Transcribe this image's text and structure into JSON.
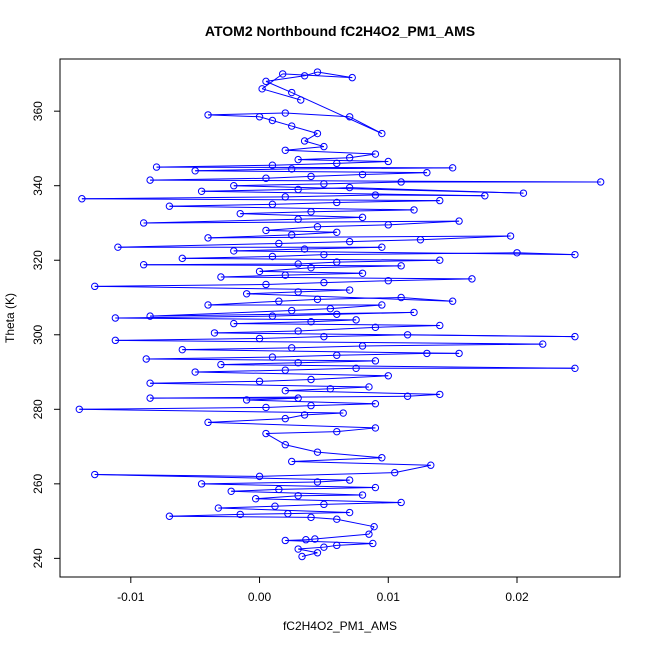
{
  "chart_data": {
    "type": "scatter",
    "title": "ATOM2 Northbound fC2H4O2_PM1_AMS",
    "xlabel": "fC2H4O2_PM1_AMS",
    "ylabel": "Theta (K)",
    "xlim": [
      -0.0155,
      0.028
    ],
    "ylim": [
      235,
      374
    ],
    "xticks": [
      -0.01,
      0.0,
      0.01,
      0.02
    ],
    "xtick_labels": [
      "-0.01",
      "0.00",
      "0.01",
      "0.02"
    ],
    "yticks": [
      240,
      260,
      280,
      300,
      320,
      340,
      360
    ],
    "ytick_labels": [
      "240",
      "260",
      "280",
      "300",
      "320",
      "340",
      "360"
    ],
    "grid": false,
    "marker": "open-circle",
    "connected": true,
    "series": [
      {
        "color": "#0000ff",
        "points": [
          [
            0.0033,
            240.5
          ],
          [
            0.0045,
            241.5
          ],
          [
            0.003,
            242.5
          ],
          [
            0.005,
            243.0
          ],
          [
            0.006,
            243.5
          ],
          [
            0.0088,
            244.0
          ],
          [
            0.002,
            244.8
          ],
          [
            0.0036,
            245.0
          ],
          [
            0.0043,
            245.2
          ],
          [
            0.0085,
            246.5
          ],
          [
            0.0089,
            248.5
          ],
          [
            0.006,
            250.5
          ],
          [
            0.004,
            251.0
          ],
          [
            -0.007,
            251.3
          ],
          [
            -0.0015,
            251.8
          ],
          [
            0.0022,
            252.0
          ],
          [
            0.007,
            252.3
          ],
          [
            -0.0032,
            253.5
          ],
          [
            0.0012,
            254.0
          ],
          [
            0.005,
            254.5
          ],
          [
            0.011,
            255.0
          ],
          [
            -0.0003,
            256.0
          ],
          [
            0.003,
            256.8
          ],
          [
            0.008,
            257.0
          ],
          [
            -0.0022,
            258.0
          ],
          [
            0.0015,
            258.5
          ],
          [
            0.009,
            259.0
          ],
          [
            -0.0045,
            260.0
          ],
          [
            0.0045,
            260.5
          ],
          [
            0.007,
            261.0
          ],
          [
            -0.0128,
            262.5
          ],
          [
            0.0,
            262.0
          ],
          [
            0.0105,
            263.0
          ],
          [
            0.0133,
            265.0
          ],
          [
            0.0025,
            266.0
          ],
          [
            0.0095,
            267.0
          ],
          [
            0.0045,
            268.5
          ],
          [
            0.002,
            270.5
          ],
          [
            0.0005,
            273.5
          ],
          [
            0.006,
            274.0
          ],
          [
            0.009,
            275.0
          ],
          [
            -0.004,
            276.5
          ],
          [
            0.002,
            277.5
          ],
          [
            0.0035,
            278.5
          ],
          [
            0.0065,
            279.0
          ],
          [
            -0.014,
            280.0
          ],
          [
            0.0005,
            280.5
          ],
          [
            0.004,
            281.0
          ],
          [
            0.009,
            281.5
          ],
          [
            -0.001,
            282.5
          ],
          [
            0.003,
            283.0
          ],
          [
            -0.0085,
            283.0
          ],
          [
            0.0115,
            283.5
          ],
          [
            0.014,
            284.0
          ],
          [
            0.002,
            285.0
          ],
          [
            0.0055,
            285.5
          ],
          [
            0.0085,
            286.0
          ],
          [
            -0.0085,
            287.0
          ],
          [
            0.0,
            287.5
          ],
          [
            0.004,
            288.0
          ],
          [
            0.01,
            289.0
          ],
          [
            -0.005,
            290.0
          ],
          [
            0.002,
            290.5
          ],
          [
            0.0075,
            291.0
          ],
          [
            0.0245,
            291.0
          ],
          [
            -0.003,
            292.0
          ],
          [
            0.003,
            292.5
          ],
          [
            0.009,
            293.0
          ],
          [
            -0.0088,
            293.5
          ],
          [
            0.001,
            294.0
          ],
          [
            0.006,
            294.5
          ],
          [
            0.013,
            295.0
          ],
          [
            0.0155,
            295.0
          ],
          [
            -0.006,
            296.0
          ],
          [
            0.0025,
            296.5
          ],
          [
            0.008,
            297.0
          ],
          [
            0.022,
            297.5
          ],
          [
            -0.0112,
            298.5
          ],
          [
            0.0,
            299.0
          ],
          [
            0.005,
            299.5
          ],
          [
            0.0115,
            300.0
          ],
          [
            0.0245,
            299.5
          ],
          [
            -0.0035,
            300.5
          ],
          [
            0.003,
            301.0
          ],
          [
            0.009,
            302.0
          ],
          [
            0.014,
            302.5
          ],
          [
            -0.002,
            303.0
          ],
          [
            0.004,
            303.5
          ],
          [
            0.0075,
            304.0
          ],
          [
            -0.0112,
            304.5
          ],
          [
            0.001,
            305.0
          ],
          [
            0.006,
            305.5
          ],
          [
            0.012,
            306.0
          ],
          [
            -0.0085,
            305.0
          ],
          [
            0.0025,
            306.5
          ],
          [
            0.0055,
            307.0
          ],
          [
            0.0095,
            308.0
          ],
          [
            -0.004,
            308.0
          ],
          [
            0.0015,
            309.0
          ],
          [
            0.0045,
            309.5
          ],
          [
            0.011,
            310.0
          ],
          [
            0.015,
            309.0
          ],
          [
            -0.001,
            311.0
          ],
          [
            0.003,
            311.5
          ],
          [
            0.007,
            312.0
          ],
          [
            -0.0128,
            313.0
          ],
          [
            0.0005,
            313.5
          ],
          [
            0.005,
            314.0
          ],
          [
            0.01,
            314.5
          ],
          [
            0.0165,
            315.0
          ],
          [
            -0.003,
            315.5
          ],
          [
            0.002,
            316.0
          ],
          [
            0.008,
            316.5
          ],
          [
            0.0,
            317.0
          ],
          [
            0.004,
            318.0
          ],
          [
            0.011,
            318.5
          ],
          [
            -0.009,
            318.8
          ],
          [
            0.003,
            319.0
          ],
          [
            0.006,
            319.5
          ],
          [
            0.014,
            320.0
          ],
          [
            -0.006,
            320.5
          ],
          [
            0.001,
            321.0
          ],
          [
            0.005,
            321.5
          ],
          [
            0.02,
            322.0
          ],
          [
            0.0245,
            321.5
          ],
          [
            -0.002,
            322.5
          ],
          [
            0.0035,
            323.0
          ],
          [
            0.0095,
            323.5
          ],
          [
            -0.011,
            323.5
          ],
          [
            0.0015,
            324.5
          ],
          [
            0.007,
            325.0
          ],
          [
            0.0125,
            325.5
          ],
          [
            0.0195,
            326.5
          ],
          [
            -0.004,
            326.0
          ],
          [
            0.0025,
            326.8
          ],
          [
            0.006,
            327.5
          ],
          [
            0.0005,
            328.0
          ],
          [
            0.0045,
            329.0
          ],
          [
            0.01,
            329.5
          ],
          [
            0.0155,
            330.5
          ],
          [
            -0.009,
            330.0
          ],
          [
            0.003,
            331.0
          ],
          [
            0.008,
            331.5
          ],
          [
            -0.0015,
            332.5
          ],
          [
            0.004,
            333.0
          ],
          [
            0.012,
            333.5
          ],
          [
            -0.007,
            334.5
          ],
          [
            0.001,
            335.0
          ],
          [
            0.006,
            335.5
          ],
          [
            0.014,
            336.0
          ],
          [
            -0.0138,
            336.5
          ],
          [
            0.002,
            337.0
          ],
          [
            0.009,
            337.5
          ],
          [
            0.0175,
            337.3
          ],
          [
            -0.0045,
            338.5
          ],
          [
            0.003,
            339.0
          ],
          [
            0.007,
            339.5
          ],
          [
            0.0205,
            338.0
          ],
          [
            -0.002,
            340.0
          ],
          [
            0.005,
            340.5
          ],
          [
            0.011,
            341.0
          ],
          [
            0.0265,
            341.0
          ],
          [
            -0.0085,
            341.5
          ],
          [
            0.0005,
            342.0
          ],
          [
            0.004,
            342.5
          ],
          [
            0.008,
            343.0
          ],
          [
            0.013,
            343.5
          ],
          [
            -0.005,
            344.0
          ],
          [
            0.0025,
            344.5
          ],
          [
            0.015,
            344.8
          ],
          [
            -0.008,
            345.0
          ],
          [
            0.001,
            345.5
          ],
          [
            0.006,
            346.0
          ],
          [
            0.01,
            346.5
          ],
          [
            0.003,
            347.0
          ],
          [
            0.007,
            347.5
          ],
          [
            0.009,
            348.5
          ],
          [
            0.002,
            349.5
          ],
          [
            0.005,
            350.5
          ],
          [
            0.0035,
            352.0
          ],
          [
            0.0045,
            354.0
          ],
          [
            0.0025,
            356.0
          ],
          [
            0.001,
            357.5
          ],
          [
            0.0,
            358.5
          ],
          [
            -0.004,
            359.0
          ],
          [
            0.002,
            359.5
          ],
          [
            0.007,
            358.5
          ],
          [
            0.0095,
            354.0
          ],
          [
            0.0025,
            365.0
          ],
          [
            0.0005,
            368.0
          ],
          [
            0.0035,
            369.5
          ],
          [
            0.0045,
            370.5
          ],
          [
            0.0072,
            369.0
          ],
          [
            0.0018,
            370.0
          ],
          [
            0.0002,
            366.0
          ],
          [
            0.0032,
            363.0
          ]
        ]
      }
    ]
  }
}
